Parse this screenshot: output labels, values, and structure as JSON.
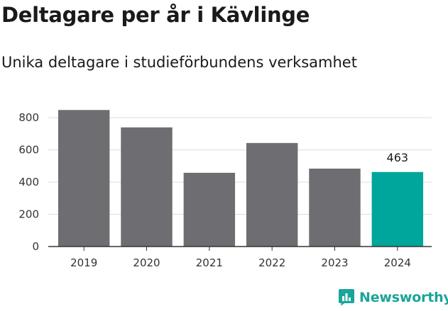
{
  "chart_data": {
    "type": "bar",
    "title": "Deltagare per år i Kävlinge",
    "subtitle": "Unika deltagare i studieförbundens verksamhet",
    "categories": [
      "2019",
      "2020",
      "2021",
      "2022",
      "2023",
      "2024"
    ],
    "values": [
      848,
      740,
      458,
      643,
      484,
      463
    ],
    "data_labels": [
      null,
      null,
      null,
      null,
      null,
      "463"
    ],
    "ylim": [
      0,
      880
    ],
    "yticks": [
      0,
      200,
      400,
      600,
      800
    ],
    "grid": true,
    "colors": {
      "bar": "#6e6d72",
      "highlight": "#00a59b",
      "grid": "#dddddd",
      "axis": "#333333"
    },
    "highlight_index": 5
  },
  "branding": {
    "name": "Newsworthy",
    "icon": "newsworthy-logo-icon",
    "color": "#1aa59a"
  }
}
